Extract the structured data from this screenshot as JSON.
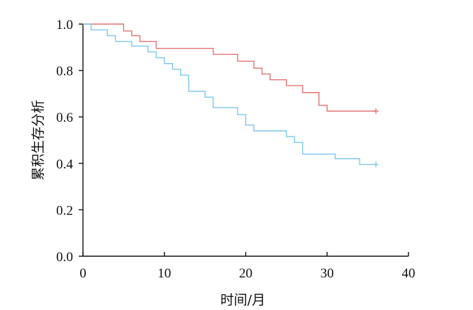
{
  "chart_data": {
    "type": "line",
    "subtype": "kaplan-meier-step",
    "title": "",
    "xlabel": "时间/月",
    "ylabel": "累积生存分析",
    "xlim": [
      0,
      40
    ],
    "ylim": [
      0,
      1
    ],
    "x_ticks": [
      0,
      10,
      20,
      30,
      40
    ],
    "x_tick_labels": [
      "0",
      "10",
      "20",
      "30",
      "40"
    ],
    "y_ticks": [
      0,
      0.2,
      0.4,
      0.6,
      0.8,
      1.0
    ],
    "y_tick_labels": [
      "0.0",
      "0.2",
      "0.4",
      "0.6",
      "0.8",
      "1.0"
    ],
    "grid": false,
    "legend": "none",
    "series": [
      {
        "color": "#e57373",
        "censor_marker": "+",
        "censor_at": [
          36,
          0.625
        ],
        "points": [
          [
            0,
            1.0
          ],
          [
            5,
            0.97
          ],
          [
            6,
            0.95
          ],
          [
            7,
            0.925
          ],
          [
            9,
            0.895
          ],
          [
            16,
            0.87
          ],
          [
            19,
            0.84
          ],
          [
            21,
            0.81
          ],
          [
            22,
            0.785
          ],
          [
            23,
            0.76
          ],
          [
            25,
            0.735
          ],
          [
            27,
            0.705
          ],
          [
            29,
            0.65
          ],
          [
            30,
            0.625
          ],
          [
            36,
            0.625
          ]
        ]
      },
      {
        "color": "#7ec8ee",
        "censor_marker": "+",
        "censor_at": [
          36,
          0.395
        ],
        "points": [
          [
            0,
            1.0
          ],
          [
            1,
            0.975
          ],
          [
            3,
            0.95
          ],
          [
            4,
            0.925
          ],
          [
            6,
            0.905
          ],
          [
            8,
            0.88
          ],
          [
            9,
            0.855
          ],
          [
            10,
            0.83
          ],
          [
            11,
            0.805
          ],
          [
            12,
            0.78
          ],
          [
            13,
            0.71
          ],
          [
            15,
            0.685
          ],
          [
            16,
            0.64
          ],
          [
            19,
            0.61
          ],
          [
            20,
            0.565
          ],
          [
            21,
            0.54
          ],
          [
            25,
            0.515
          ],
          [
            26,
            0.49
          ],
          [
            27,
            0.44
          ],
          [
            31,
            0.42
          ],
          [
            34,
            0.395
          ],
          [
            36,
            0.395
          ]
        ]
      }
    ]
  }
}
